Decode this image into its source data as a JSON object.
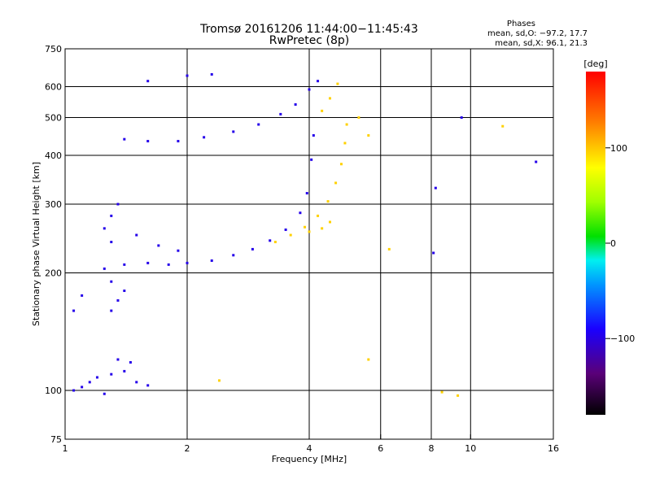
{
  "chart_data": {
    "type": "scatter",
    "title": "Tromsø 20161206 11:44:00−11:45:43",
    "subtitle": "RwPretec (8p)",
    "xlabel": "Frequency [MHz]",
    "ylabel": "Stationary phase Virtual Height [km]",
    "x_scale": "log",
    "y_scale": "log",
    "xlim": [
      1,
      16
    ],
    "ylim": [
      75,
      750
    ],
    "x_ticks": [
      1,
      2,
      4,
      6,
      8,
      10,
      16
    ],
    "x_ticklabels": [
      "1",
      "2",
      "4",
      "6",
      "8",
      "10",
      "16"
    ],
    "y_ticks": [
      75,
      100,
      200,
      300,
      400,
      500,
      600,
      750
    ],
    "y_ticklabels": [
      "75",
      "100",
      "200",
      "300",
      "400",
      "500",
      "600",
      "750"
    ],
    "x_gridlines": [
      2,
      4,
      6,
      8,
      10
    ],
    "y_gridlines": [
      100,
      200,
      300,
      400,
      500,
      600
    ],
    "grid": true,
    "phases_legend": {
      "header": "Phases",
      "line_o": "mean, sd,O: −97.2, 17.7",
      "line_x": "mean, sd,X:  96.1, 21.3"
    },
    "colorbar": {
      "label": "[deg]",
      "range": [
        -180,
        180
      ],
      "ticks": [
        -100,
        0,
        100
      ],
      "ticklabels": [
        "−100",
        "0",
        "100"
      ],
      "colormap": "black-purple-blue-cyan-green-yellow-orange-red"
    },
    "series": [
      {
        "mode": "O",
        "phase": -97.2,
        "points": [
          [
            1.05,
            100
          ],
          [
            1.1,
            102
          ],
          [
            1.15,
            105
          ],
          [
            1.2,
            108
          ],
          [
            1.3,
            110
          ],
          [
            1.4,
            112
          ],
          [
            1.5,
            105
          ],
          [
            1.35,
            120
          ],
          [
            1.45,
            118
          ],
          [
            1.6,
            103
          ],
          [
            1.25,
            98
          ],
          [
            1.25,
            205
          ],
          [
            1.4,
            210
          ],
          [
            1.6,
            212
          ],
          [
            1.8,
            210
          ],
          [
            2.0,
            212
          ],
          [
            2.3,
            215
          ],
          [
            2.6,
            222
          ],
          [
            2.9,
            230
          ],
          [
            3.2,
            242
          ],
          [
            3.5,
            258
          ],
          [
            3.8,
            285
          ],
          [
            3.95,
            320
          ],
          [
            4.05,
            390
          ],
          [
            4.1,
            450
          ],
          [
            1.25,
            260
          ],
          [
            1.3,
            280
          ],
          [
            1.35,
            300
          ],
          [
            1.3,
            240
          ],
          [
            1.5,
            250
          ],
          [
            1.7,
            235
          ],
          [
            1.9,
            228
          ],
          [
            1.3,
            160
          ],
          [
            1.35,
            170
          ],
          [
            1.4,
            180
          ],
          [
            1.3,
            190
          ],
          [
            1.05,
            160
          ],
          [
            1.1,
            175
          ],
          [
            1.4,
            440
          ],
          [
            1.6,
            435
          ],
          [
            1.9,
            435
          ],
          [
            2.2,
            445
          ],
          [
            2.6,
            460
          ],
          [
            3.0,
            480
          ],
          [
            3.4,
            510
          ],
          [
            3.7,
            540
          ],
          [
            4.0,
            590
          ],
          [
            4.2,
            620
          ],
          [
            1.6,
            620
          ],
          [
            2.0,
            640
          ],
          [
            2.3,
            645
          ],
          [
            8.2,
            330
          ],
          [
            8.1,
            225
          ],
          [
            9.5,
            500
          ],
          [
            14.5,
            385
          ]
        ]
      },
      {
        "mode": "X",
        "phase": 96.1,
        "points": [
          [
            3.3,
            240
          ],
          [
            3.6,
            250
          ],
          [
            3.9,
            262
          ],
          [
            4.2,
            280
          ],
          [
            4.45,
            305
          ],
          [
            4.65,
            340
          ],
          [
            4.8,
            380
          ],
          [
            4.9,
            430
          ],
          [
            4.95,
            480
          ],
          [
            4.5,
            270
          ],
          [
            4.3,
            260
          ],
          [
            4.0,
            255
          ],
          [
            4.3,
            520
          ],
          [
            4.5,
            560
          ],
          [
            4.7,
            610
          ],
          [
            5.3,
            500
          ],
          [
            5.6,
            450
          ],
          [
            2.4,
            106
          ],
          [
            6.3,
            230
          ],
          [
            5.6,
            120
          ],
          [
            8.5,
            99
          ],
          [
            9.3,
            97
          ],
          [
            12.0,
            475
          ]
        ]
      }
    ]
  }
}
